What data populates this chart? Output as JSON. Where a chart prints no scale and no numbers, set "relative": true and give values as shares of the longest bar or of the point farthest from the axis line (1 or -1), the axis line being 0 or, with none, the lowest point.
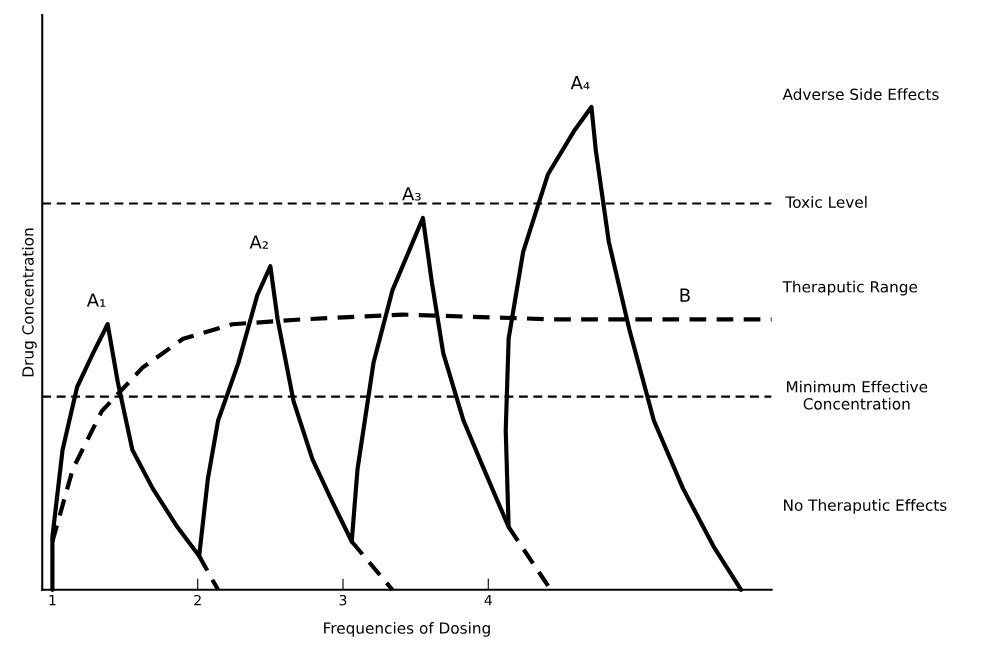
{
  "chart_data": {
    "type": "line",
    "relative": true,
    "xlabel": "Frequencies of Dosing",
    "ylabel": "Drug Concentration",
    "xlim": [
      0.93,
      5.95
    ],
    "xticks": [
      1,
      2,
      3,
      4
    ],
    "series": [
      {
        "color": "#000000",
        "line_style": "solid",
        "x": [
          1.0,
          1.0,
          1.07,
          1.17,
          1.28,
          1.38,
          1.45,
          1.55,
          1.69,
          1.86,
          2.01,
          2.07,
          2.14,
          2.28,
          2.41,
          2.5,
          2.55,
          2.66,
          2.79,
          2.93,
          3.06,
          3.1,
          3.21,
          3.34,
          3.48,
          3.55,
          3.61,
          3.69,
          3.83,
          3.97,
          4.14,
          4.12,
          4.14,
          4.24,
          4.41,
          4.59,
          4.71,
          4.74,
          4.83,
          4.97,
          5.14,
          5.34,
          5.55,
          5.74
        ],
        "values": [
          0,
          0.11,
          0.29,
          0.42,
          0.49,
          0.55,
          0.43,
          0.29,
          0.21,
          0.13,
          0.07,
          0.23,
          0.35,
          0.47,
          0.61,
          0.67,
          0.56,
          0.39,
          0.27,
          0.18,
          0.1,
          0.25,
          0.47,
          0.62,
          0.72,
          0.77,
          0.64,
          0.49,
          0.35,
          0.25,
          0.13,
          0.33,
          0.52,
          0.7,
          0.86,
          0.95,
          1.0,
          0.91,
          0.72,
          0.54,
          0.35,
          0.21,
          0.09,
          0
        ]
      },
      {
        "color": "#000000",
        "line_style": "dashed",
        "x": [
          2.01,
          2.14
        ],
        "values": [
          0.07,
          0
        ]
      },
      {
        "color": "#000000",
        "line_style": "dashed",
        "x": [
          3.06,
          3.34
        ],
        "values": [
          0.1,
          0
        ]
      },
      {
        "color": "#000000",
        "line_style": "dashed",
        "x": [
          4.14,
          4.43
        ],
        "values": [
          0.13,
          0
        ]
      },
      {
        "color": "#000000",
        "line_style": "dashed",
        "x": [
          1.0,
          1.14,
          1.34,
          1.62,
          1.9,
          2.24,
          2.72,
          3.41,
          4.45,
          5.95
        ],
        "values": [
          0.1,
          0.25,
          0.37,
          0.46,
          0.52,
          0.55,
          0.56,
          0.57,
          0.56,
          0.56
        ]
      }
    ],
    "ref_lines": [
      {
        "axis": "y",
        "value": 0.8,
        "label": "Toxic Level",
        "color": "#000000",
        "line_style": "dashed"
      },
      {
        "axis": "y",
        "value": 0.4,
        "label": "Minimum Effective\nConcentration",
        "color": "#000000",
        "line_style": "dashed"
      }
    ],
    "annotations": [
      {
        "text": "A₁",
        "x": 1.38,
        "y": 0.55
      },
      {
        "text": "A₂",
        "x": 2.5,
        "y": 0.67
      },
      {
        "text": "A₃",
        "x": 3.55,
        "y": 0.77
      },
      {
        "text": "A₄",
        "x": 4.71,
        "y": 1.0
      },
      {
        "text": "B",
        "x": 5.43,
        "y": 0.56
      },
      "Adverse Side Effects",
      "Theraputic Range",
      "No Theraputic Effects"
    ]
  }
}
